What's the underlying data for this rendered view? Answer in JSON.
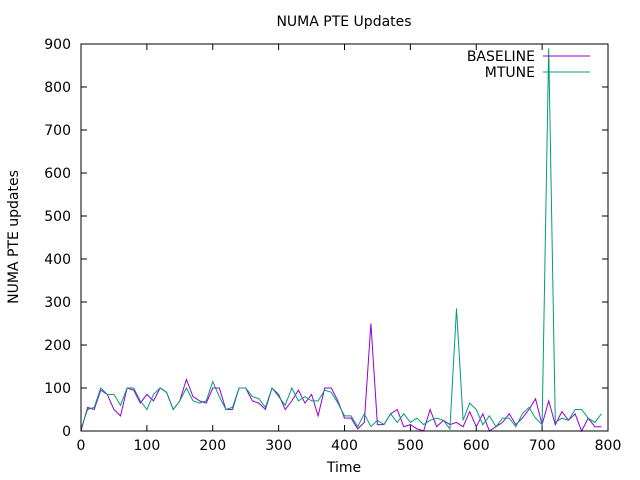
{
  "chart_data": {
    "type": "line",
    "title": "NUMA PTE Updates",
    "xlabel": "Time",
    "ylabel": "NUMA PTE updates",
    "xlim": [
      0,
      800
    ],
    "ylim": [
      0,
      900
    ],
    "xticks": [
      0,
      100,
      200,
      300,
      400,
      500,
      600,
      700,
      800
    ],
    "yticks": [
      0,
      100,
      200,
      300,
      400,
      500,
      600,
      700,
      800,
      900
    ],
    "grid": false,
    "legend_position": "top-right",
    "series": [
      {
        "name": "BASELINE",
        "color": "#9400d3",
        "points": [
          [
            0,
            0
          ],
          [
            10,
            55
          ],
          [
            20,
            50
          ],
          [
            30,
            95
          ],
          [
            40,
            85
          ],
          [
            50,
            50
          ],
          [
            60,
            35
          ],
          [
            70,
            100
          ],
          [
            80,
            95
          ],
          [
            90,
            65
          ],
          [
            100,
            85
          ],
          [
            110,
            70
          ],
          [
            120,
            100
          ],
          [
            130,
            90
          ],
          [
            140,
            50
          ],
          [
            150,
            70
          ],
          [
            160,
            120
          ],
          [
            170,
            80
          ],
          [
            180,
            70
          ],
          [
            190,
            65
          ],
          [
            200,
            100
          ],
          [
            210,
            100
          ],
          [
            220,
            50
          ],
          [
            230,
            50
          ],
          [
            240,
            100
          ],
          [
            250,
            100
          ],
          [
            260,
            70
          ],
          [
            270,
            65
          ],
          [
            280,
            50
          ],
          [
            290,
            100
          ],
          [
            300,
            85
          ],
          [
            310,
            50
          ],
          [
            320,
            70
          ],
          [
            330,
            95
          ],
          [
            340,
            65
          ],
          [
            350,
            85
          ],
          [
            360,
            35
          ],
          [
            370,
            100
          ],
          [
            380,
            100
          ],
          [
            390,
            70
          ],
          [
            400,
            30
          ],
          [
            410,
            30
          ],
          [
            420,
            5
          ],
          [
            430,
            20
          ],
          [
            440,
            250
          ],
          [
            450,
            15
          ],
          [
            460,
            15
          ],
          [
            470,
            40
          ],
          [
            480,
            50
          ],
          [
            490,
            10
          ],
          [
            500,
            15
          ],
          [
            510,
            5
          ],
          [
            520,
            0
          ],
          [
            530,
            50
          ],
          [
            540,
            10
          ],
          [
            550,
            25
          ],
          [
            560,
            15
          ],
          [
            570,
            20
          ],
          [
            580,
            10
          ],
          [
            590,
            45
          ],
          [
            600,
            10
          ],
          [
            610,
            40
          ],
          [
            620,
            0
          ],
          [
            630,
            10
          ],
          [
            640,
            20
          ],
          [
            650,
            40
          ],
          [
            660,
            15
          ],
          [
            670,
            30
          ],
          [
            680,
            50
          ],
          [
            690,
            75
          ],
          [
            700,
            15
          ],
          [
            710,
            70
          ],
          [
            720,
            15
          ],
          [
            730,
            45
          ],
          [
            740,
            25
          ],
          [
            750,
            40
          ],
          [
            760,
            0
          ],
          [
            770,
            30
          ],
          [
            780,
            10
          ],
          [
            790,
            10
          ]
        ]
      },
      {
        "name": "MTUNE",
        "color": "#009e73",
        "points": [
          [
            0,
            5
          ],
          [
            10,
            50
          ],
          [
            20,
            55
          ],
          [
            30,
            100
          ],
          [
            40,
            85
          ],
          [
            50,
            85
          ],
          [
            60,
            60
          ],
          [
            70,
            100
          ],
          [
            80,
            100
          ],
          [
            90,
            70
          ],
          [
            100,
            50
          ],
          [
            110,
            85
          ],
          [
            120,
            100
          ],
          [
            130,
            90
          ],
          [
            140,
            50
          ],
          [
            150,
            70
          ],
          [
            160,
            100
          ],
          [
            170,
            70
          ],
          [
            180,
            65
          ],
          [
            190,
            70
          ],
          [
            200,
            115
          ],
          [
            210,
            80
          ],
          [
            220,
            50
          ],
          [
            230,
            55
          ],
          [
            240,
            100
          ],
          [
            250,
            100
          ],
          [
            260,
            80
          ],
          [
            270,
            75
          ],
          [
            280,
            55
          ],
          [
            290,
            100
          ],
          [
            300,
            80
          ],
          [
            310,
            60
          ],
          [
            320,
            100
          ],
          [
            330,
            70
          ],
          [
            340,
            80
          ],
          [
            350,
            70
          ],
          [
            360,
            70
          ],
          [
            370,
            95
          ],
          [
            380,
            90
          ],
          [
            390,
            65
          ],
          [
            400,
            35
          ],
          [
            410,
            35
          ],
          [
            420,
            10
          ],
          [
            430,
            40
          ],
          [
            440,
            10
          ],
          [
            450,
            25
          ],
          [
            460,
            15
          ],
          [
            470,
            40
          ],
          [
            480,
            20
          ],
          [
            490,
            40
          ],
          [
            500,
            20
          ],
          [
            510,
            30
          ],
          [
            520,
            15
          ],
          [
            530,
            25
          ],
          [
            540,
            30
          ],
          [
            550,
            25
          ],
          [
            560,
            5
          ],
          [
            570,
            285
          ],
          [
            580,
            25
          ],
          [
            590,
            65
          ],
          [
            600,
            50
          ],
          [
            610,
            15
          ],
          [
            620,
            35
          ],
          [
            630,
            10
          ],
          [
            640,
            30
          ],
          [
            650,
            30
          ],
          [
            660,
            10
          ],
          [
            670,
            40
          ],
          [
            680,
            55
          ],
          [
            690,
            30
          ],
          [
            700,
            15
          ],
          [
            710,
            890
          ],
          [
            720,
            20
          ],
          [
            730,
            30
          ],
          [
            740,
            25
          ],
          [
            750,
            50
          ],
          [
            760,
            50
          ],
          [
            770,
            30
          ],
          [
            780,
            20
          ],
          [
            790,
            40
          ]
        ]
      }
    ]
  }
}
